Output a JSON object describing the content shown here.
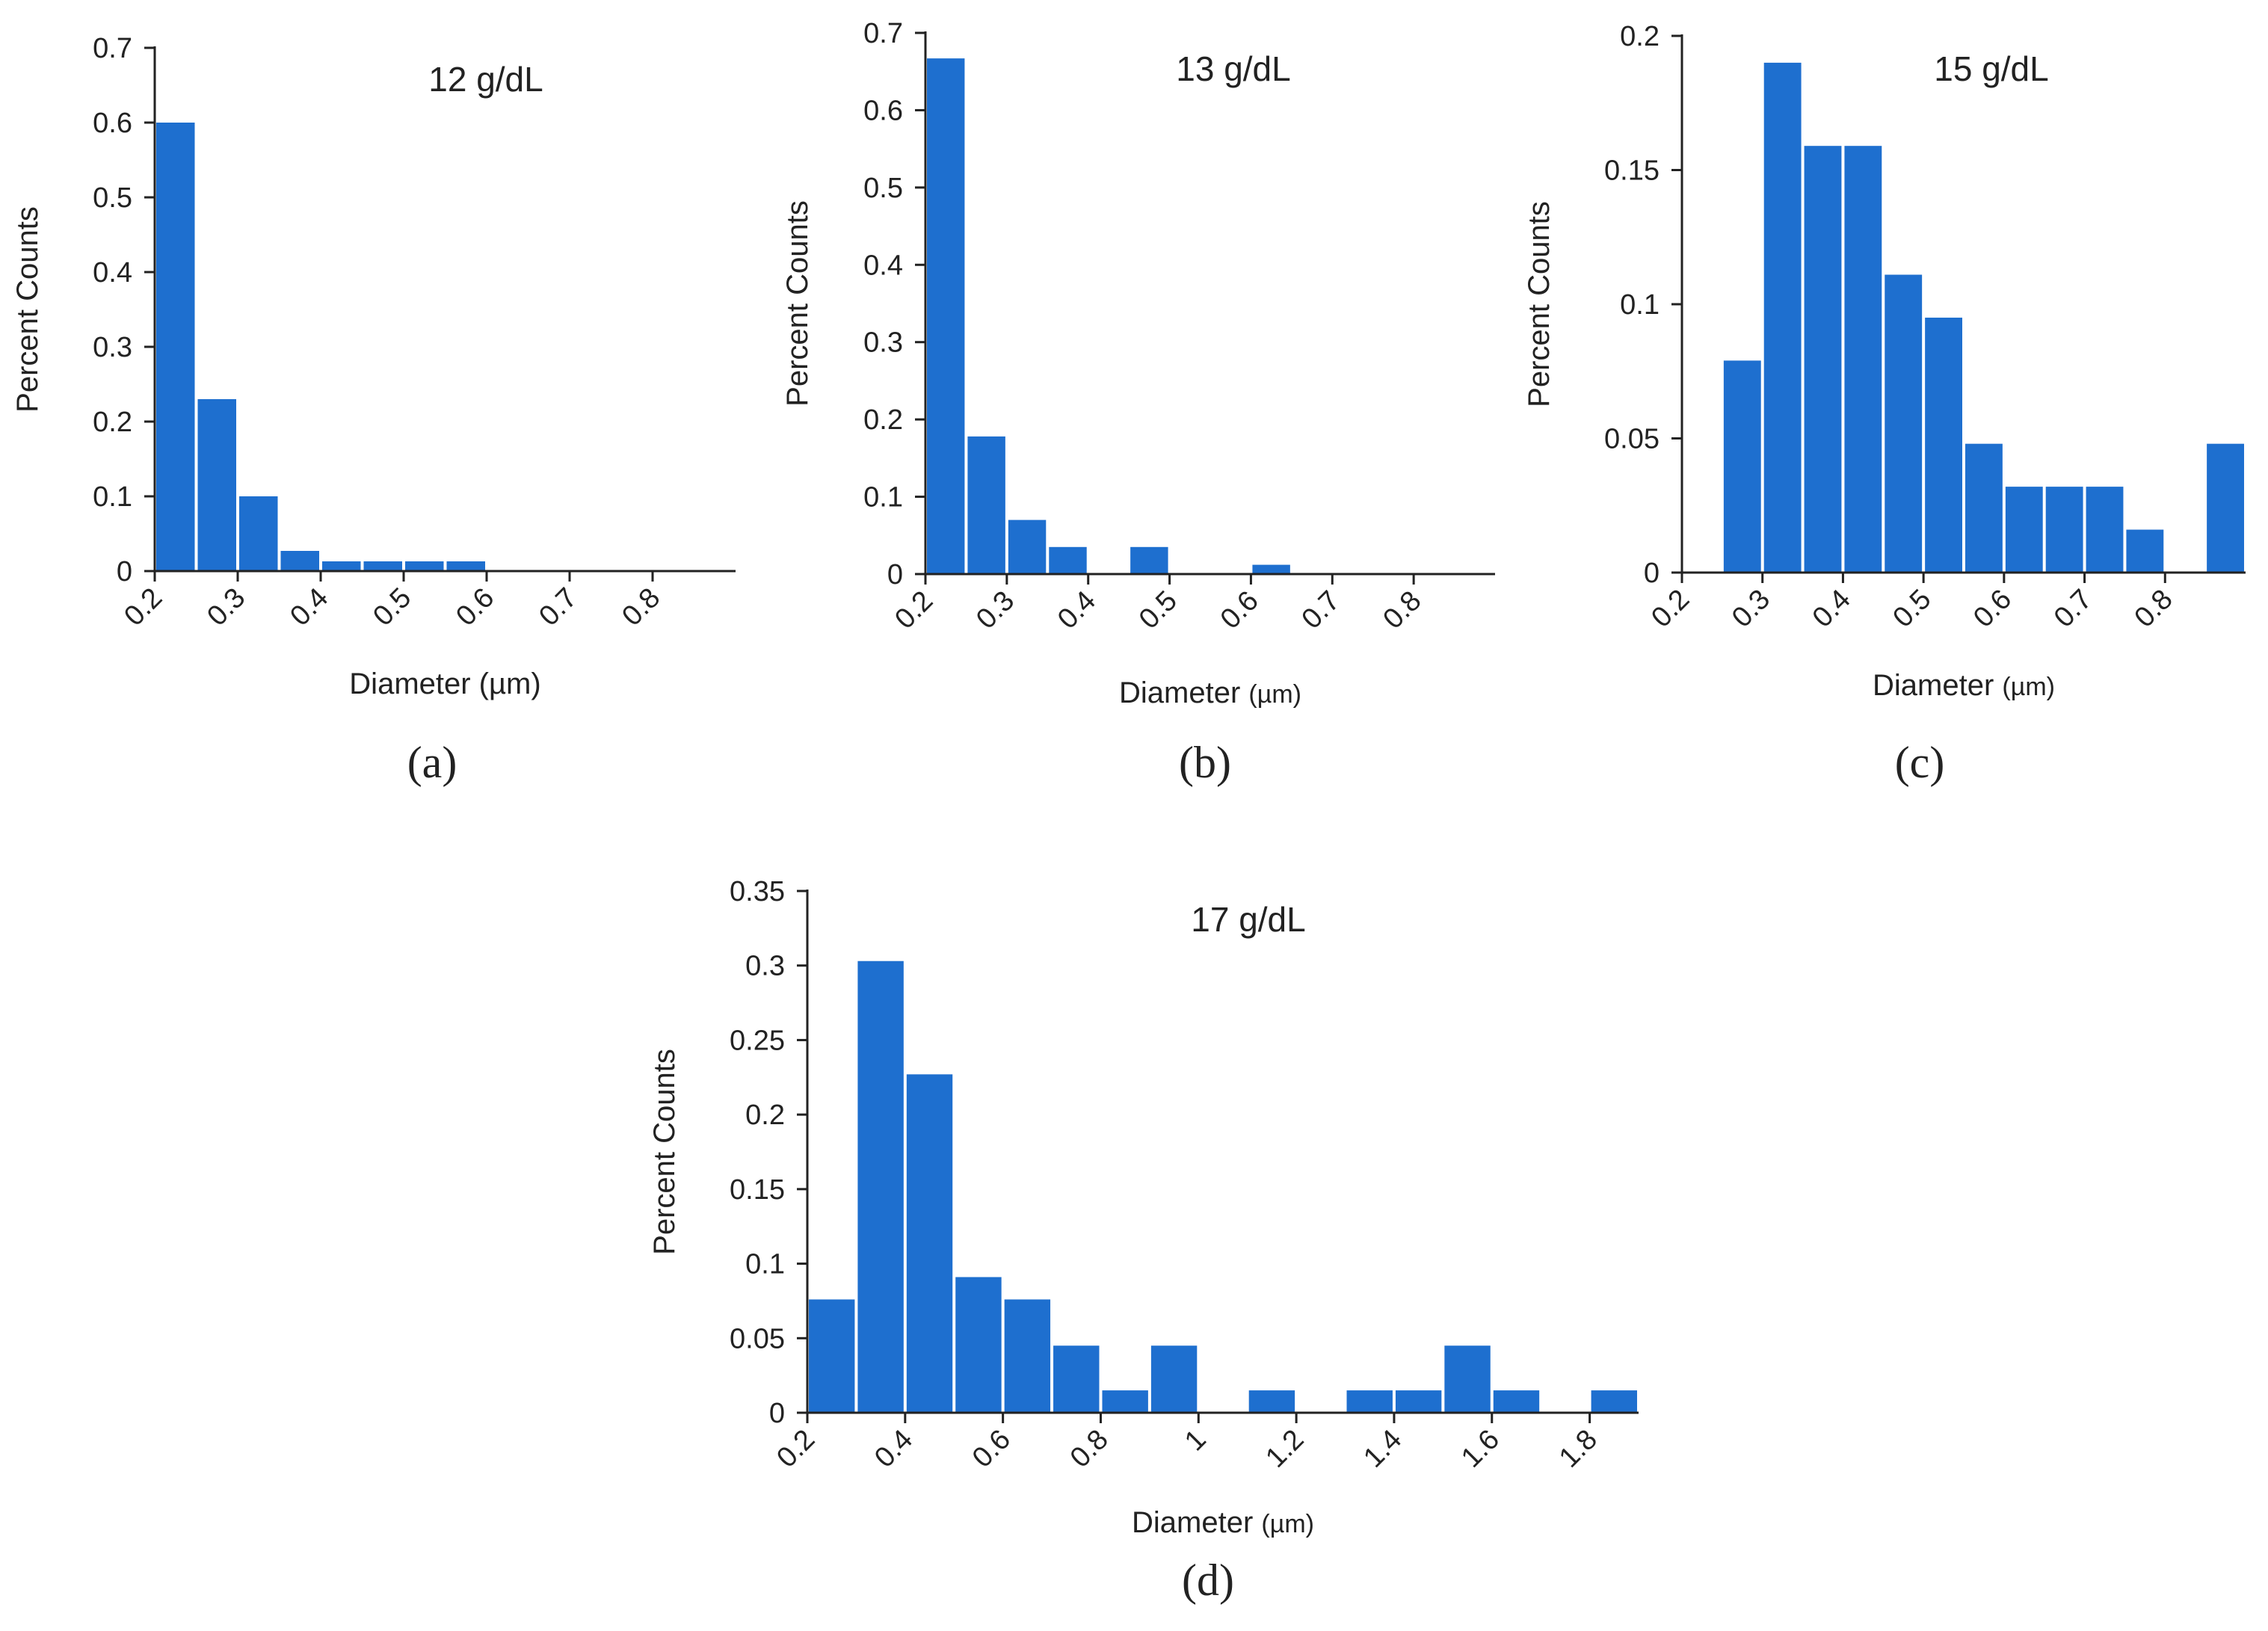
{
  "chart_data": [
    {
      "id": "a",
      "type": "bar",
      "title": "12 g/dL",
      "caption": "(a)",
      "xlabel": "Diameter (µm)",
      "ylabel": "Percent Counts",
      "bar_color": "#1e6fcf",
      "xlim": [
        0.2,
        0.9
      ],
      "ylim": [
        0,
        0.7
      ],
      "yticks": [
        "0",
        "0.1",
        "0.2",
        "0.3",
        "0.4",
        "0.5",
        "0.6",
        "0.7"
      ],
      "xticks": [
        "0.2",
        "0.3",
        "0.4",
        "0.5",
        "0.6",
        "0.7",
        "0.8"
      ],
      "bin_width": 0.05,
      "bins": [
        0.2,
        0.25,
        0.3,
        0.35,
        0.4,
        0.45,
        0.5,
        0.55
      ],
      "values": [
        0.6,
        0.23,
        0.1,
        0.027,
        0.013,
        0.013,
        0.013,
        0.013
      ]
    },
    {
      "id": "b",
      "type": "bar",
      "title": "13 g/dL",
      "caption": "(b)",
      "xlabel": "Diameter",
      "xlabel_unit": "(µm)",
      "ylabel": "Percent Counts",
      "bar_color": "#1e6fcf",
      "xlim": [
        0.2,
        0.9
      ],
      "ylim": [
        0,
        0.7
      ],
      "yticks": [
        "0",
        "0.1",
        "0.2",
        "0.3",
        "0.4",
        "0.5",
        "0.6",
        "0.7"
      ],
      "xticks": [
        "0.2",
        "0.3",
        "0.4",
        "0.5",
        "0.6",
        "0.7",
        "0.8"
      ],
      "bin_width": 0.05,
      "bins": [
        0.2,
        0.25,
        0.3,
        0.35,
        0.45,
        0.6
      ],
      "values": [
        0.667,
        0.178,
        0.07,
        0.035,
        0.035,
        0.012
      ]
    },
    {
      "id": "c",
      "type": "bar",
      "title": "15 g/dL",
      "caption": "(c)",
      "xlabel": "Diameter",
      "xlabel_unit": "(µm)",
      "ylabel": "Percent Counts",
      "bar_color": "#1e6fcf",
      "xlim": [
        0.2,
        0.9
      ],
      "ylim": [
        0,
        0.2
      ],
      "yticks": [
        "0",
        "0.05",
        "0.1",
        "0.15",
        "0.2"
      ],
      "xticks": [
        "0.2",
        "0.3",
        "0.4",
        "0.5",
        "0.6",
        "0.7",
        "0.8"
      ],
      "bin_width": 0.05,
      "bins": [
        0.25,
        0.3,
        0.35,
        0.4,
        0.45,
        0.5,
        0.55,
        0.6,
        0.65,
        0.7,
        0.75,
        0.85
      ],
      "values": [
        0.079,
        0.19,
        0.159,
        0.159,
        0.111,
        0.095,
        0.048,
        0.032,
        0.032,
        0.032,
        0.016,
        0.048
      ]
    },
    {
      "id": "d",
      "type": "bar",
      "title": "17 g/dL",
      "caption": "(d)",
      "xlabel": "Diameter",
      "xlabel_unit": "(µm)",
      "ylabel": "Percent Counts",
      "bar_color": "#1e6fcf",
      "xlim": [
        0.2,
        1.9
      ],
      "ylim": [
        0,
        0.35
      ],
      "yticks": [
        "0",
        "0.05",
        "0.1",
        "0.15",
        "0.2",
        "0.25",
        "0.3",
        "0.35"
      ],
      "xticks": [
        "0.2",
        "0.4",
        "0.6",
        "0.8",
        "1",
        "1.2",
        "1.4",
        "1.6",
        "1.8"
      ],
      "bin_width": 0.1,
      "bins": [
        0.2,
        0.3,
        0.4,
        0.5,
        0.6,
        0.7,
        0.8,
        0.9,
        1.1,
        1.3,
        1.4,
        1.5,
        1.6,
        1.8
      ],
      "values": [
        0.076,
        0.303,
        0.227,
        0.091,
        0.076,
        0.045,
        0.015,
        0.045,
        0.015,
        0.015,
        0.015,
        0.045,
        0.015,
        0.015
      ]
    }
  ]
}
